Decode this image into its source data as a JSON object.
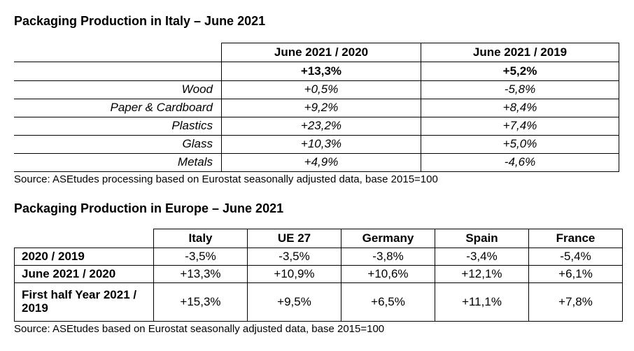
{
  "italy": {
    "title": "Packaging Production in Italy – June 2021",
    "headers": [
      "June 2021 / 2020",
      "June 2021 / 2019"
    ],
    "total": [
      "+13,3%",
      "+5,2%"
    ],
    "rows": [
      {
        "label": "Wood",
        "v1": "+0,5%",
        "v2": "-5,8%"
      },
      {
        "label": "Paper & Cardboard",
        "v1": "+9,2%",
        "v2": "+8,4%"
      },
      {
        "label": "Plastics",
        "v1": "+23,2%",
        "v2": "+7,4%"
      },
      {
        "label": "Glass",
        "v1": "+10,3%",
        "v2": "+5,0%"
      },
      {
        "label": "Metals",
        "v1": "+4,9%",
        "v2": "-4,6%"
      }
    ],
    "source": "Source: ASEtudes processing based on Eurostat seasonally adjusted data, base 2015=100"
  },
  "europe": {
    "title": "Packaging Production in Europe – June 2021",
    "headers": [
      "Italy",
      "UE 27",
      "Germany",
      "Spain",
      "France"
    ],
    "rows": [
      {
        "label": "2020 / 2019",
        "values": [
          "-3,5%",
          "-3,5%",
          "-3,8%",
          "-3,4%",
          "-5,4%"
        ]
      },
      {
        "label": "June 2021 / 2020",
        "values": [
          "+13,3%",
          "+10,9%",
          "+10,6%",
          "+12,1%",
          "+6,1%"
        ]
      },
      {
        "label": "First half Year 2021 / 2019",
        "values": [
          "+15,3%",
          "+9,5%",
          "+6,5%",
          "+11,1%",
          "+7,8%"
        ]
      }
    ],
    "source": "Source: ASEtudes based on Eurostat seasonally adjusted data, base 2015=100"
  }
}
